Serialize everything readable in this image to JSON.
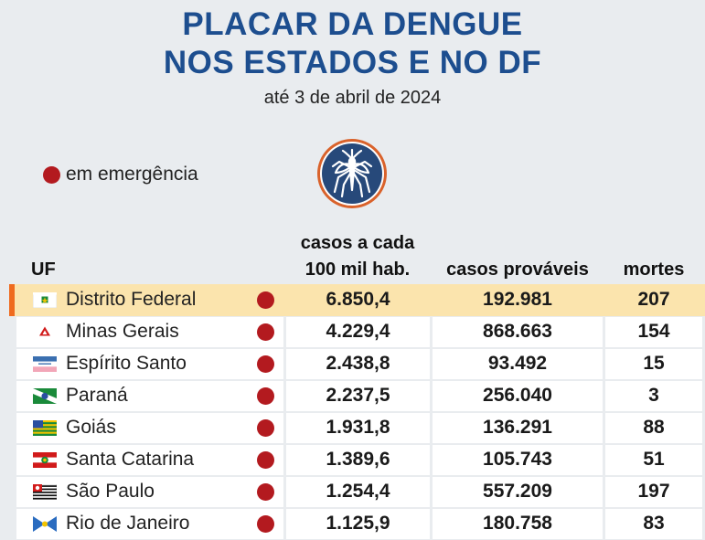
{
  "header": {
    "title_line1": "PLACAR DA DENGUE",
    "title_line2": "NOS ESTADOS E NO DF",
    "subtitle": "até 3 de abril de 2024"
  },
  "legend": {
    "label": "em emergência",
    "dot_color": "#b31a1f"
  },
  "icon": {
    "name": "mosquito-icon",
    "circle_color": "#27497a",
    "ring_color": "#d9622b"
  },
  "colors": {
    "title": "#1d4e8f",
    "highlight": "#fbe4ad",
    "highlight_bar": "#ef6b1f",
    "emergency": "#b31a1f"
  },
  "chart_data": {
    "type": "table",
    "columns": {
      "uf": "UF",
      "rate_line1": "casos a cada",
      "rate_line2": "100 mil hab.",
      "cases": "casos prováveis",
      "deaths": "mortes"
    },
    "rows": [
      {
        "flag": "distrito-federal-flag",
        "uf": "Distrito Federal",
        "emergency": true,
        "rate": "6.850,4",
        "cases": "192.981",
        "deaths": "207",
        "highlight": true
      },
      {
        "flag": "minas-gerais-flag",
        "uf": "Minas Gerais",
        "emergency": true,
        "rate": "4.229,4",
        "cases": "868.663",
        "deaths": "154"
      },
      {
        "flag": "espirito-santo-flag",
        "uf": "Espírito Santo",
        "emergency": true,
        "rate": "2.438,8",
        "cases": "93.492",
        "deaths": "15"
      },
      {
        "flag": "parana-flag",
        "uf": "Paraná",
        "emergency": true,
        "rate": "2.237,5",
        "cases": "256.040",
        "deaths": "3"
      },
      {
        "flag": "goias-flag",
        "uf": "Goiás",
        "emergency": true,
        "rate": "1.931,8",
        "cases": "136.291",
        "deaths": "88"
      },
      {
        "flag": "santa-catarina-flag",
        "uf": "Santa Catarina",
        "emergency": true,
        "rate": "1.389,6",
        "cases": "105.743",
        "deaths": "51"
      },
      {
        "flag": "sao-paulo-flag",
        "uf": "São Paulo",
        "emergency": true,
        "rate": "1.254,4",
        "cases": "557.209",
        "deaths": "197"
      },
      {
        "flag": "rio-de-janeiro-flag",
        "uf": "Rio de Janeiro",
        "emergency": true,
        "rate": "1.125,9",
        "cases": "180.758",
        "deaths": "83"
      }
    ]
  }
}
